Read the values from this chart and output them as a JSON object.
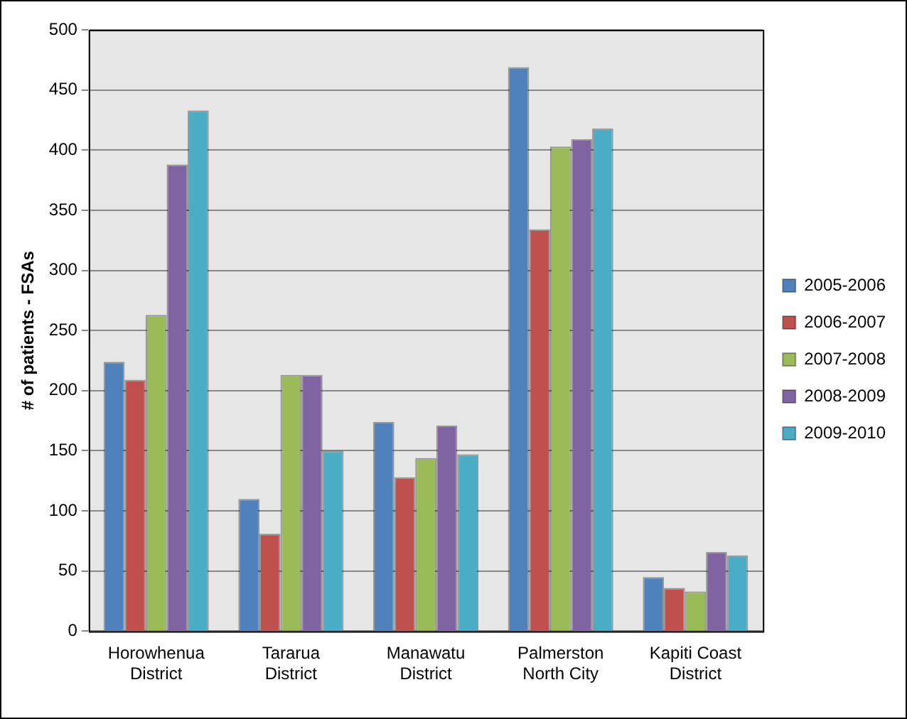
{
  "chart_data": {
    "type": "bar",
    "ylabel": "# of patients - FSAs",
    "categories": [
      [
        "Horowhenua",
        "District"
      ],
      [
        "Tararua",
        "District"
      ],
      [
        "Manawatu",
        "District"
      ],
      [
        "Palmerston",
        "North City"
      ],
      [
        "Kapiti Coast",
        "District"
      ]
    ],
    "series": [
      {
        "name": "2005-2006",
        "color": "#4f81bd",
        "values": [
          224,
          110,
          174,
          469,
          45
        ]
      },
      {
        "name": "2006-2007",
        "color": "#c0504d",
        "values": [
          209,
          81,
          128,
          334,
          36
        ]
      },
      {
        "name": "2007-2008",
        "color": "#9bbb59",
        "values": [
          263,
          213,
          144,
          403,
          33
        ]
      },
      {
        "name": "2008-2009",
        "color": "#8064a2",
        "values": [
          388,
          213,
          171,
          409,
          66
        ]
      },
      {
        "name": "2009-2010",
        "color": "#4bacc6",
        "values": [
          433,
          150,
          147,
          418,
          63
        ]
      }
    ],
    "ylim": [
      0,
      500
    ],
    "yticks": [
      0,
      50,
      100,
      150,
      200,
      250,
      300,
      350,
      400,
      450,
      500
    ],
    "grid": "y",
    "legend": "right"
  }
}
